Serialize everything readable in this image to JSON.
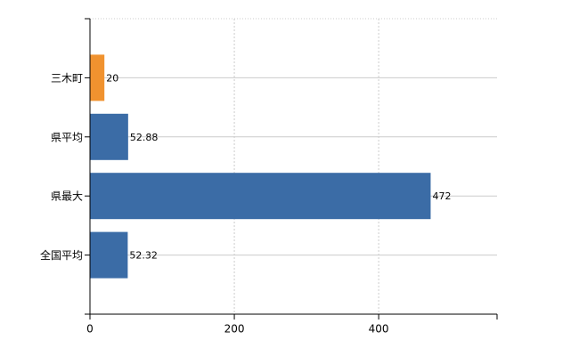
{
  "chart_data": {
    "type": "barh",
    "categories": [
      "三木町",
      "県平均",
      "県最大",
      "全国平均"
    ],
    "values": [
      20,
      52.88,
      472,
      52.32
    ],
    "colors": [
      "#f0922f",
      "#3b6ca6",
      "#3b6ca6",
      "#3b6ca6"
    ],
    "xlim": [
      0,
      564
    ],
    "xticks": [
      0,
      200,
      400
    ],
    "grid": true
  }
}
